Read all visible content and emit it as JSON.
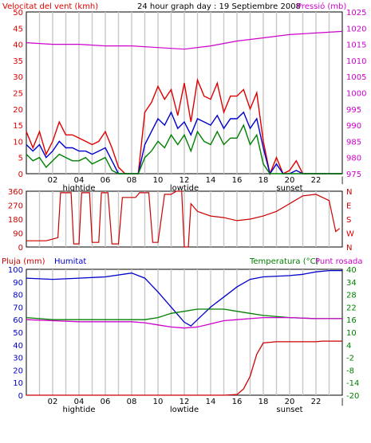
{
  "header": {
    "title": "24 hour graph day : 19 Septiembre 2008",
    "wind_label": "Velocitat del vent (kmh)",
    "pressure_label": "Pressió (mb)"
  },
  "lower_header": {
    "rain_label": "Pluja (mm)",
    "humidity_label": "Humitat",
    "temp_label": "Temperatura (°C)",
    "dew_label": "Punt rosada"
  },
  "x_axis": {
    "hour_ticks": [
      "02",
      "04",
      "06",
      "08",
      "10",
      "12",
      "14",
      "16",
      "18",
      "20",
      "22",
      "|"
    ],
    "events": [
      "hightide",
      "lowtide",
      "sunset"
    ]
  },
  "colors": {
    "wind_gust": "#e00000",
    "wind_avg": "#0000cc",
    "wind_low": "#008000",
    "pressure": "#cc00cc",
    "direction": "#cc0000",
    "humidity": "#0000cc",
    "temperature": "#008000",
    "dewpoint": "#cc00cc",
    "rain": "#cc0000",
    "grid": "#c8c8c8"
  },
  "chart_data": [
    {
      "type": "line",
      "title": "24 hour graph day : 19 Septiembre 2008",
      "ylabel": "Velocitat del vent (kmh)",
      "y2label": "Pressió (mb)",
      "ylim": [
        0,
        50
      ],
      "y_ticks": [
        "0",
        "5",
        "10",
        "15",
        "20",
        "25",
        "30",
        "35",
        "40",
        "45",
        "50"
      ],
      "y2lim": [
        975,
        1025
      ],
      "y2_ticks": [
        "975",
        "980",
        "985",
        "990",
        "995",
        "1000",
        "1005",
        "1010",
        "1015",
        "1020",
        "1025"
      ],
      "x_range_hours": [
        0,
        24
      ],
      "series": [
        {
          "name": "gust",
          "axis": "left",
          "x": [
            0,
            0.5,
            1,
            1.5,
            2,
            2.5,
            3,
            3.5,
            4,
            4.5,
            5,
            5.5,
            6,
            6.5,
            7,
            7.5,
            8,
            8.5,
            9,
            9.5,
            10,
            10.5,
            11,
            11.5,
            12,
            12.5,
            13,
            13.5,
            14,
            14.5,
            15,
            15.5,
            16,
            16.5,
            17,
            17.5,
            18,
            18.5,
            19,
            19.5,
            20,
            20.5,
            21,
            21.5,
            22,
            22.5,
            23,
            23.5,
            24
          ],
          "values": [
            13,
            8,
            13,
            6,
            10,
            16,
            12,
            12,
            11,
            10,
            9,
            10,
            13,
            8,
            2,
            0,
            0,
            0,
            19,
            22,
            27,
            23,
            26,
            18,
            28,
            16,
            29,
            24,
            23,
            28,
            19,
            24,
            24,
            26,
            20,
            25,
            10,
            0,
            5,
            0,
            1,
            4,
            0,
            0,
            0,
            0,
            0,
            0,
            0
          ]
        },
        {
          "name": "average",
          "axis": "left",
          "x": [
            0,
            0.5,
            1,
            1.5,
            2,
            2.5,
            3,
            3.5,
            4,
            4.5,
            5,
            5.5,
            6,
            6.5,
            7,
            7.5,
            8,
            8.5,
            9,
            9.5,
            10,
            10.5,
            11,
            11.5,
            12,
            12.5,
            13,
            13.5,
            14,
            14.5,
            15,
            15.5,
            16,
            16.5,
            17,
            17.5,
            18,
            18.5,
            19,
            19.5,
            20,
            20.5,
            21,
            21.5,
            22,
            22.5,
            23,
            23.5,
            24
          ],
          "values": [
            9,
            7,
            9,
            5,
            7,
            10,
            8,
            8,
            7,
            7,
            6,
            7,
            8,
            4,
            0,
            0,
            0,
            0,
            9,
            13,
            17,
            15,
            19,
            14,
            16,
            12,
            17,
            16,
            15,
            18,
            14,
            17,
            17,
            19,
            14,
            17,
            8,
            0,
            3,
            0,
            0,
            1,
            0,
            0,
            0,
            0,
            0,
            0,
            0
          ]
        },
        {
          "name": "low",
          "axis": "left",
          "x": [
            0,
            0.5,
            1,
            1.5,
            2,
            2.5,
            3,
            3.5,
            4,
            4.5,
            5,
            5.5,
            6,
            6.5,
            7,
            7.5,
            8,
            8.5,
            9,
            9.5,
            10,
            10.5,
            11,
            11.5,
            12,
            12.5,
            13,
            13.5,
            14,
            14.5,
            15,
            15.5,
            16,
            16.5,
            17,
            17.5,
            18,
            18.5,
            19,
            19.5,
            20,
            20.5,
            21,
            21.5,
            22,
            22.5,
            23,
            23.5,
            24
          ],
          "values": [
            6,
            4,
            5,
            2,
            4,
            6,
            5,
            4,
            4,
            5,
            3,
            4,
            5,
            1,
            0,
            0,
            0,
            0,
            5,
            7,
            10,
            8,
            12,
            9,
            12,
            7,
            13,
            10,
            9,
            13,
            9,
            11,
            11,
            15,
            9,
            12,
            3,
            0,
            0,
            0,
            0,
            0,
            0,
            0,
            0,
            0,
            0,
            0,
            0
          ]
        },
        {
          "name": "pressure",
          "axis": "right",
          "x": [
            0,
            2,
            4,
            6,
            8,
            10,
            12,
            14,
            16,
            18,
            20,
            22,
            24
          ],
          "values": [
            1015.5,
            1015,
            1015,
            1014.5,
            1014.5,
            1014,
            1013.5,
            1014.5,
            1016,
            1017,
            1018,
            1018.5,
            1019
          ]
        }
      ]
    },
    {
      "type": "line",
      "ylim": [
        0,
        360
      ],
      "y_ticks": [
        "0",
        "90",
        "180",
        "270",
        "360"
      ],
      "y2_ticks": [
        "N",
        "W",
        "S",
        "E",
        "N"
      ],
      "x_range_hours": [
        0,
        24
      ],
      "series": [
        {
          "name": "direction",
          "x": [
            0,
            1.5,
            2.4,
            2.6,
            3.4,
            3.6,
            4.0,
            4.2,
            4.8,
            5.0,
            5.5,
            5.7,
            6.2,
            6.5,
            7.0,
            7.3,
            8.3,
            8.6,
            9.3,
            9.6,
            10.0,
            10.5,
            11.0,
            11.4,
            11.8,
            12.0,
            12.3,
            12.5,
            13,
            14,
            15,
            16,
            17,
            18,
            19,
            20,
            21,
            22,
            22.5,
            23,
            23.5,
            23.8
          ],
          "values": [
            40,
            40,
            60,
            350,
            350,
            20,
            20,
            350,
            350,
            30,
            30,
            350,
            350,
            20,
            20,
            320,
            320,
            350,
            350,
            30,
            30,
            340,
            340,
            360,
            360,
            0,
            0,
            280,
            230,
            200,
            190,
            170,
            180,
            200,
            230,
            280,
            330,
            340,
            320,
            300,
            100,
            120
          ]
        }
      ]
    },
    {
      "type": "line",
      "ylabel": "Pluja (mm) / Humitat",
      "y2label": "Temperatura (°C) / Punt rosada",
      "y_ticks": [
        "0",
        "10",
        "20",
        "30",
        "40",
        "50",
        "60",
        "70",
        "80",
        "90",
        "100"
      ],
      "y_ticks_rain": [
        "0",
        "2",
        "4",
        "6",
        "8",
        "10"
      ],
      "y2lim": [
        -20,
        40
      ],
      "y2_ticks": [
        "-20",
        "-14",
        "-8",
        "-2",
        "4",
        "10",
        "16",
        "22",
        "28",
        "34",
        "40"
      ],
      "x_range_hours": [
        0,
        24
      ],
      "series": [
        {
          "name": "Humitat",
          "axis": "left",
          "x": [
            0,
            2,
            4,
            6,
            8,
            9,
            10,
            11,
            11.5,
            12,
            12.5,
            13,
            14,
            15,
            16,
            17,
            18,
            20,
            21,
            22,
            23,
            24
          ],
          "values": [
            93,
            92,
            93,
            94,
            97,
            93,
            82,
            70,
            64,
            58,
            55,
            60,
            70,
            78,
            86,
            92,
            94,
            95,
            96,
            98,
            99,
            99
          ]
        },
        {
          "name": "Temperatura",
          "axis": "right",
          "x": [
            0,
            2,
            4,
            6,
            8,
            9,
            10,
            11,
            12,
            13,
            14,
            15,
            16,
            17,
            18,
            20,
            22,
            24
          ],
          "values": [
            17,
            16,
            16,
            16,
            16,
            16,
            17,
            19,
            20,
            21,
            21,
            21,
            20,
            19,
            18,
            17,
            16.5,
            16.5
          ]
        },
        {
          "name": "Punt rosada",
          "axis": "right",
          "x": [
            0,
            2,
            4,
            6,
            8,
            9,
            10,
            11,
            12,
            13,
            14,
            15,
            16,
            17,
            18,
            20,
            22,
            24
          ],
          "values": [
            16,
            15.5,
            15,
            15,
            15,
            14.5,
            13.5,
            12.5,
            12,
            12.5,
            14,
            15.5,
            16,
            16.5,
            17,
            17,
            16.5,
            16.5
          ]
        },
        {
          "name": "Pluja",
          "axis": "left_rain",
          "x": [
            0,
            15,
            16,
            16.5,
            17,
            17.5,
            18,
            18.5,
            19,
            20,
            22,
            22.5,
            24
          ],
          "values": [
            0,
            0,
            0.1,
            1,
            3,
            6.5,
            8.3,
            8.4,
            8.5,
            8.5,
            8.5,
            8.6,
            8.6
          ]
        }
      ]
    }
  ]
}
